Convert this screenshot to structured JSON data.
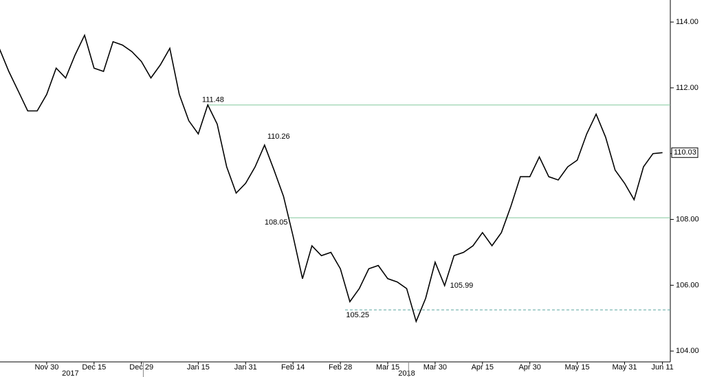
{
  "chart_data": {
    "type": "line",
    "categories": [
      null,
      null,
      null,
      null,
      null,
      "Nov 30",
      null,
      null,
      null,
      null,
      "Dec 15",
      null,
      null,
      null,
      null,
      "Dec 29",
      null,
      null,
      null,
      null,
      null,
      "Jan 15",
      null,
      null,
      null,
      null,
      "Jan 31",
      null,
      null,
      null,
      null,
      "Feb 14",
      null,
      null,
      null,
      null,
      "Feb 28",
      null,
      null,
      null,
      null,
      "Mar 15",
      null,
      null,
      null,
      null,
      "Mar 30",
      null,
      null,
      null,
      null,
      "Apr 15",
      null,
      null,
      null,
      null,
      "Apr 30",
      null,
      null,
      null,
      null,
      "May 15",
      null,
      null,
      null,
      null,
      "May 31",
      null,
      null,
      null,
      "Jun 11"
    ],
    "years": [
      "2017",
      "2018"
    ],
    "series": [
      {
        "color": "#000000",
        "values": [
          113.2,
          112.5,
          111.9,
          111.3,
          111.3,
          111.8,
          112.6,
          112.3,
          113.0,
          113.6,
          112.6,
          112.5,
          113.4,
          113.3,
          113.1,
          112.8,
          112.3,
          112.7,
          113.2,
          111.8,
          111.0,
          110.6,
          111.48,
          110.9,
          109.6,
          108.8,
          109.1,
          109.6,
          110.26,
          109.5,
          108.7,
          107.5,
          106.2,
          107.2,
          106.9,
          107.0,
          106.5,
          105.5,
          105.9,
          106.5,
          106.6,
          106.2,
          106.1,
          105.9,
          104.9,
          105.6,
          106.7,
          105.99,
          106.9,
          107.0,
          107.2,
          107.6,
          107.2,
          107.6,
          108.4,
          109.3,
          109.3,
          109.9,
          109.3,
          109.2,
          109.6,
          109.8,
          110.6,
          111.2,
          110.5,
          109.5,
          109.1,
          108.6,
          109.6,
          110.0,
          110.03
        ]
      }
    ],
    "hlines": [
      {
        "value": 111.48,
        "color": "#7fc89a",
        "style": "solid"
      },
      {
        "value": 108.05,
        "color": "#7fc89a",
        "style": "solid"
      },
      {
        "value": 105.25,
        "color": "#5aa6a0",
        "style": "dashed"
      }
    ],
    "ylim": [
      103.67,
      114.67
    ],
    "yticks": [
      {
        "value": 104,
        "label": "104.00"
      },
      {
        "value": 106,
        "label": "106.00"
      },
      {
        "value": 108,
        "label": "108.00"
      },
      {
        "value": 110,
        "label": "110.00"
      },
      {
        "value": 112,
        "label": "112.00"
      },
      {
        "value": 114,
        "label": "114.00"
      }
    ]
  }
}
